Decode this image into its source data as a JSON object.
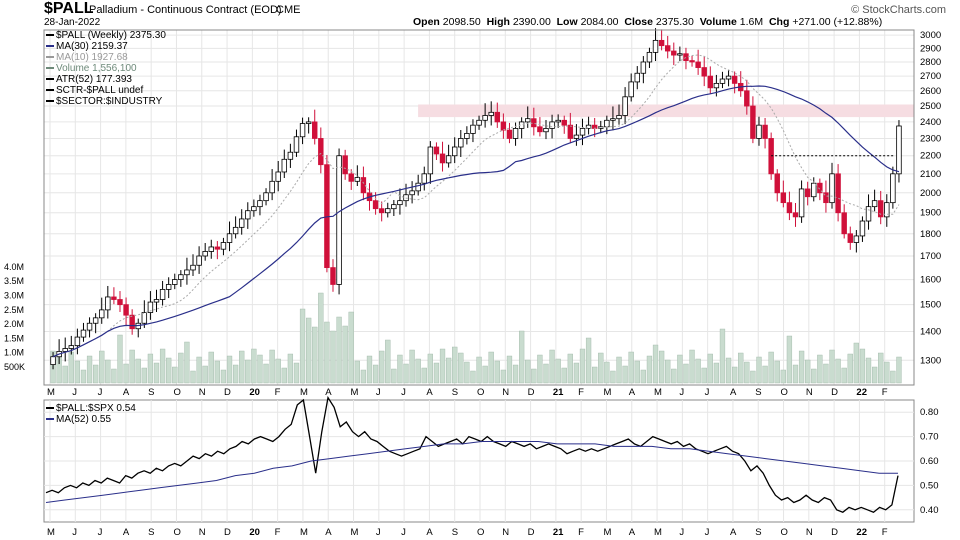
{
  "header": {
    "symbol": "$PALL",
    "description": "Palladium - Continuous Contract (EOD)",
    "exchange": "CME",
    "date": "28-Jan-2022",
    "open_label": "Open",
    "open": "2098.50",
    "high_label": "High",
    "high": "2390.00",
    "low_label": "Low",
    "low": "2084.00",
    "close_label": "Close",
    "close": "2375.30",
    "volume_label": "Volume",
    "volume": "1.6M",
    "chg_label": "Chg",
    "chg": "+271.00 (+12.88%)",
    "brand": "© StockCharts.com"
  },
  "legend_main": [
    {
      "text": "$PALL (Weekly) 2375.30",
      "color": "#000000"
    },
    {
      "text": "MA(30) 2159.37",
      "color": "#2a2f8a"
    },
    {
      "text": "MA(10) 1927.68",
      "color": "#999999"
    },
    {
      "text": "Volume 1,556,100",
      "color": "#6e8a7a"
    },
    {
      "text": "ATR(52) 177.393",
      "color": "#000000"
    },
    {
      "text": "SCTR-$PALL undef",
      "color": "#000000"
    },
    {
      "text": "$SECTOR:$INDUSTRY",
      "color": "#000000"
    }
  ],
  "legend_lower": [
    {
      "text": "$PALL:$SPX 0.54",
      "color": "#000000"
    },
    {
      "text": "MA(52) 0.55",
      "color": "#2a2f8a"
    }
  ],
  "colors": {
    "up": "#000000",
    "down": "#d0103a",
    "ma30": "#2a2f8a",
    "ma10": "#aaaaaa",
    "volume": "#c9dccf",
    "resistance_zone": "#f6dde2",
    "grid": "#e6e6e6"
  },
  "chart_data": [
    {
      "type": "candlestick",
      "title": "$PALL Palladium - Continuous Contract (EOD) Weekly",
      "y_scale": "log",
      "ylim": [
        1220,
        3040
      ],
      "y_ticks": [
        1300,
        1400,
        1500,
        1600,
        1700,
        1800,
        1900,
        2000,
        2100,
        2200,
        2300,
        2400,
        2500,
        2600,
        2700,
        2800,
        2900,
        3000
      ],
      "x_ticks": [
        "M",
        "J",
        "J",
        "A",
        "S",
        "O",
        "N",
        "D",
        "20",
        "F",
        "M",
        "A",
        "M",
        "J",
        "J",
        "A",
        "S",
        "O",
        "N",
        "D",
        "21",
        "F",
        "M",
        "A",
        "M",
        "J",
        "J",
        "A",
        "S",
        "O",
        "N",
        "D",
        "22",
        "F"
      ],
      "grid": true,
      "closes": [
        1312,
        1330,
        1340,
        1350,
        1380,
        1405,
        1430,
        1450,
        1480,
        1530,
        1520,
        1500,
        1460,
        1410,
        1430,
        1470,
        1510,
        1520,
        1560,
        1580,
        1600,
        1620,
        1640,
        1660,
        1700,
        1720,
        1740,
        1730,
        1760,
        1800,
        1830,
        1870,
        1910,
        1930,
        1960,
        2000,
        2060,
        2110,
        2180,
        2220,
        2310,
        2390,
        2400,
        2300,
        2150,
        1650,
        1580,
        2200,
        2100,
        2060,
        2080,
        2000,
        1960,
        1920,
        1900,
        1920,
        1940,
        1960,
        1990,
        2010,
        2050,
        2100,
        2250,
        2210,
        2160,
        2200,
        2250,
        2300,
        2330,
        2380,
        2410,
        2440,
        2460,
        2400,
        2350,
        2300,
        2360,
        2400,
        2420,
        2370,
        2340,
        2360,
        2400,
        2410,
        2380,
        2300,
        2320,
        2360,
        2380,
        2360,
        2370,
        2410,
        2420,
        2440,
        2560,
        2660,
        2720,
        2800,
        2870,
        2960,
        2920,
        2880,
        2850,
        2860,
        2810,
        2800,
        2760,
        2700,
        2620,
        2650,
        2680,
        2700,
        2650,
        2600,
        2500,
        2300,
        2380,
        2300,
        2100,
        2000,
        1950,
        1900,
        1880,
        2020,
        1980,
        2050,
        2000,
        1950,
        2100,
        1900,
        1800,
        1760,
        1790,
        1860,
        1930,
        1960,
        1880,
        1950,
        2100,
        2375
      ],
      "resistance_zone": [
        2430,
        2510
      ],
      "horizontal_level": 2200,
      "volume_ticks": [
        "500K",
        "1.0M",
        "1.5M",
        "2.0M",
        "2.5M",
        "3.0M",
        "3.5M",
        "4.0M"
      ]
    },
    {
      "type": "line",
      "title": "$PALL:$SPX",
      "ylim": [
        0.35,
        0.85
      ],
      "y_ticks": [
        "0.40",
        "0.50",
        "0.60",
        "0.70",
        "0.80"
      ],
      "series": [
        {
          "name": "$PALL:$SPX",
          "values": [
            0.47,
            0.48,
            0.47,
            0.49,
            0.5,
            0.49,
            0.51,
            0.5,
            0.52,
            0.51,
            0.53,
            0.52,
            0.51,
            0.54,
            0.53,
            0.55,
            0.56,
            0.55,
            0.57,
            0.56,
            0.58,
            0.59,
            0.58,
            0.6,
            0.62,
            0.61,
            0.63,
            0.62,
            0.64,
            0.63,
            0.65,
            0.66,
            0.68,
            0.67,
            0.69,
            0.7,
            0.69,
            0.68,
            0.7,
            0.73,
            0.75,
            0.83,
            0.85,
            0.7,
            0.55,
            0.72,
            0.86,
            0.82,
            0.74,
            0.76,
            0.72,
            0.7,
            0.72,
            0.69,
            0.68,
            0.66,
            0.64,
            0.63,
            0.62,
            0.63,
            0.64,
            0.65,
            0.7,
            0.68,
            0.66,
            0.67,
            0.68,
            0.69,
            0.67,
            0.7,
            0.69,
            0.68,
            0.7,
            0.68,
            0.67,
            0.66,
            0.68,
            0.67,
            0.66,
            0.67,
            0.65,
            0.66,
            0.67,
            0.66,
            0.65,
            0.63,
            0.64,
            0.65,
            0.64,
            0.65,
            0.64,
            0.65,
            0.66,
            0.67,
            0.68,
            0.69,
            0.67,
            0.66,
            0.68,
            0.7,
            0.69,
            0.68,
            0.67,
            0.68,
            0.66,
            0.67,
            0.65,
            0.64,
            0.63,
            0.64,
            0.65,
            0.66,
            0.64,
            0.63,
            0.6,
            0.56,
            0.58,
            0.55,
            0.5,
            0.46,
            0.44,
            0.45,
            0.43,
            0.44,
            0.46,
            0.44,
            0.43,
            0.45,
            0.44,
            0.4,
            0.39,
            0.41,
            0.4,
            0.41,
            0.4,
            0.39,
            0.41,
            0.4,
            0.42,
            0.54
          ]
        },
        {
          "name": "MA(52)",
          "values": [
            0.43,
            0.44,
            0.45,
            0.46,
            0.47,
            0.48,
            0.49,
            0.5,
            0.51,
            0.52,
            0.54,
            0.55,
            0.57,
            0.58,
            0.6,
            0.61,
            0.62,
            0.63,
            0.64,
            0.65,
            0.66,
            0.67,
            0.67,
            0.68,
            0.68,
            0.68,
            0.68,
            0.67,
            0.67,
            0.67,
            0.66,
            0.66,
            0.66,
            0.65,
            0.65,
            0.64,
            0.63,
            0.62,
            0.61,
            0.6,
            0.59,
            0.58,
            0.57,
            0.56,
            0.55,
            0.55
          ]
        }
      ]
    }
  ]
}
